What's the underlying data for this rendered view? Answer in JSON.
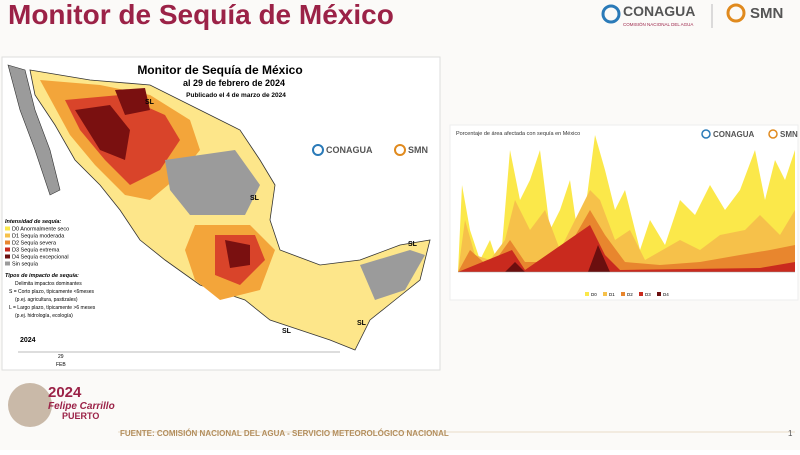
{
  "header": {
    "title": "Monitor de Sequía de México",
    "conagua": "CONAGUA",
    "conagua_sub": "COMISIÓN NACIONAL DEL AGUA",
    "smn": "SMN"
  },
  "map": {
    "title": "Monitor de Sequía de México",
    "date": "al 29 de febrero de 2024",
    "published": "Publicado el 4 de marzo de 2024",
    "legend_title": "Intensidad de sequía:",
    "legend": [
      "D0 Anormalmente seco",
      "D1 Sequía moderada",
      "D2 Sequía severa",
      "D3 Sequía extrema",
      "D4 Sequía excepcional",
      "Sin sequía"
    ],
    "impact_title": "Tipos de impacto de sequía:",
    "impacts": [
      "Delimita impactos dominantes",
      "S = Corto plazo, típicamente <6meses",
      "(p.ej. agricultura, pastizales)",
      "L = Largo plazo, típicamente >6 meses",
      "(p.ej. hidrología, ecología)"
    ],
    "regions": [
      "SL",
      "SL",
      "SL",
      "SL",
      "SL"
    ],
    "timeline_year": "2024",
    "timeline_day": "29",
    "timeline_month": "FEB",
    "logo_conagua": "CONAGUA",
    "logo_smn": "SMN"
  },
  "chart": {
    "title": "Porcentaje de área afectada con sequía en México",
    "logo_conagua": "CONAGUA",
    "logo_smn": "SMN",
    "legend": [
      "D0",
      "D1",
      "D2",
      "D3",
      "D4"
    ]
  },
  "footer": {
    "source": "FUENTE: COMISIÓN NACIONAL DEL AGUA - SERVICIO METEOROLÓGICO NACIONAL",
    "page": "1",
    "year": "2024",
    "name": "Felipe Carrillo",
    "town": "PUERTO"
  }
}
